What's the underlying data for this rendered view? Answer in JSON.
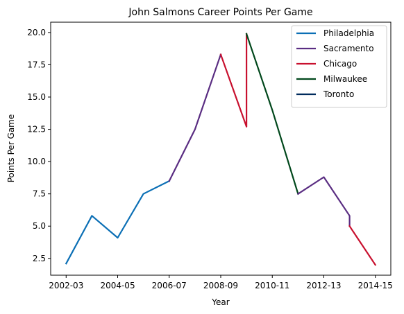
{
  "chart_data": {
    "type": "line",
    "title": "John Salmons Career Points Per Game",
    "xlabel": "Year",
    "ylabel": "Points Per Game",
    "x_tick_labels": [
      "2002-03",
      "2004-05",
      "2006-07",
      "2008-09",
      "2010-11",
      "2012-13",
      "2014-15"
    ],
    "y_ticks": [
      2.5,
      5.0,
      7.5,
      10.0,
      12.5,
      15.0,
      17.5,
      20.0
    ],
    "xlim": [
      "2002-03",
      "2014-15"
    ],
    "ylim": [
      1.2,
      20.8
    ],
    "grid": false,
    "legend_position": "top-right",
    "series": [
      {
        "name": "Philadelphia",
        "color": "#0b6fb5",
        "points": [
          [
            "2002-03",
            2.1
          ],
          [
            "2003-04",
            5.8
          ],
          [
            "2004-05",
            4.1
          ],
          [
            "2005-06",
            7.5
          ],
          [
            "2006-07",
            8.5
          ]
        ]
      },
      {
        "name": "Sacramento",
        "color": "#5a2d82",
        "points": [
          [
            "2006-07",
            8.5
          ],
          [
            "2007-08",
            12.5
          ],
          [
            "2008-09",
            18.3
          ]
        ]
      },
      {
        "name": "Chicago",
        "color": "#c8102e",
        "points": [
          [
            "2008-09",
            18.3
          ],
          [
            "2009-10",
            12.7
          ],
          [
            "2009-10",
            19.9
          ]
        ]
      },
      {
        "name": "Milwaukee",
        "color": "#00471b",
        "points": [
          [
            "2009-10",
            19.9
          ],
          [
            "2010-11",
            14.0
          ],
          [
            "2011-12",
            7.5
          ]
        ]
      },
      {
        "name": "Sacramento",
        "color": "#5a2d82",
        "legend": false,
        "points": [
          [
            "2011-12",
            7.5
          ],
          [
            "2012-13",
            8.8
          ],
          [
            "2013-14",
            5.8
          ],
          [
            "2013-14",
            5.0
          ]
        ]
      },
      {
        "name": "Toronto",
        "color": "#002b5c",
        "points": []
      },
      {
        "name": "Chicago",
        "color": "#c8102e",
        "legend": false,
        "points": [
          [
            "2013-14",
            5.0
          ],
          [
            "2014-15",
            2.0
          ]
        ]
      }
    ]
  }
}
